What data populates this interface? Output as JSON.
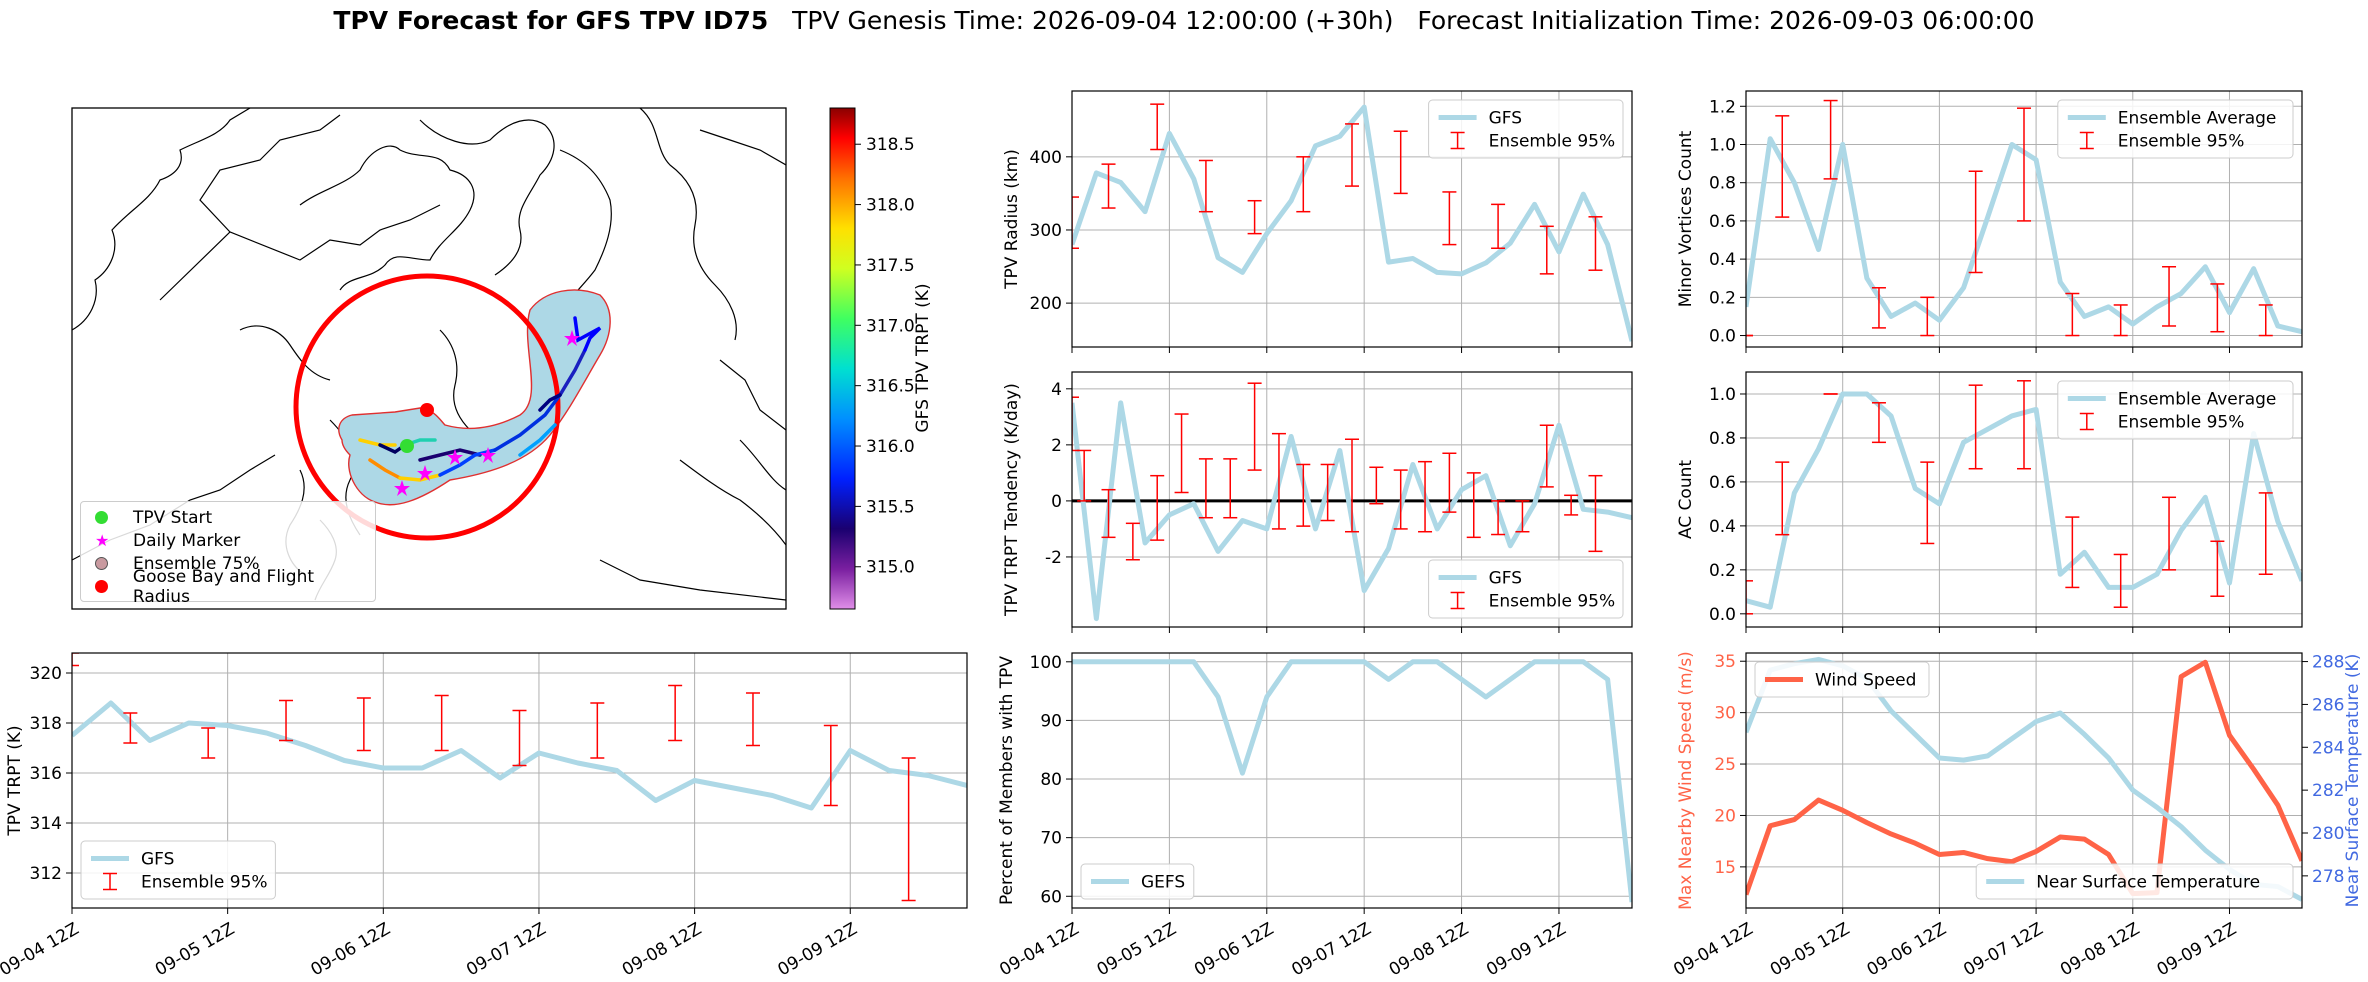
{
  "title": {
    "bold": "TPV Forecast for GFS TPV ID75",
    "genesis": "TPV Genesis Time: 2026-09-04 12:00:00 (+30h)",
    "init": "Forecast Initialization Time: 2026-09-03 06:00:00"
  },
  "colors": {
    "gfs_line": "#add8e6",
    "ensemble_bar": "#ff0000",
    "wind_line": "#ff6347",
    "temp_axis": "#4169e1",
    "ensemble_fill": "#add8e6",
    "flight_radius": "#ff0000"
  },
  "map": {
    "colorbar_label": "GFS TPV TRPT (K)",
    "colorbar_ticks": [
      "315.0",
      "315.5",
      "316.0",
      "316.5",
      "317.0",
      "317.5",
      "318.0",
      "318.5"
    ],
    "colorbar_range": [
      314.65,
      318.8
    ],
    "legend": [
      {
        "label": "TPV Start",
        "marker": "green-dot-icon"
      },
      {
        "label": "Daily Marker",
        "marker": "magenta-star-icon"
      },
      {
        "label": "Ensemble 75%",
        "marker": "blue-circle-icon"
      },
      {
        "label": "Goose Bay and Flight Radius",
        "marker": "red-dot-icon"
      }
    ]
  },
  "x_tick_labels": [
    "09-04 12Z",
    "09-05 12Z",
    "09-06 12Z",
    "09-07 12Z",
    "09-08 12Z",
    "09-09 12Z"
  ],
  "chart_data": [
    {
      "id": "radius",
      "type": "line",
      "ylabel": "TPV Radius (km)",
      "ylim": [
        140,
        490
      ],
      "yticks": [
        200,
        300,
        400
      ],
      "grid": true,
      "legend_position": "top-right",
      "x_hours": [
        0,
        6,
        12,
        18,
        24,
        30,
        36,
        42,
        48,
        54,
        60,
        66,
        72,
        78,
        84,
        90,
        96,
        102,
        108,
        114,
        120,
        126,
        132,
        138
      ],
      "series": [
        {
          "name": "GFS",
          "values": [
            280,
            378,
            365,
            325,
            432,
            370,
            262,
            242,
            295,
            340,
            415,
            428,
            468,
            256,
            261,
            242,
            240,
            255,
            282,
            335,
            270,
            349,
            280,
            148
          ]
        }
      ],
      "ensemble": {
        "name": "Ensemble 95%",
        "x_hours": [
          0,
          9,
          21,
          33,
          45,
          57,
          69,
          81,
          93,
          105,
          117,
          129
        ],
        "low": [
          275,
          330,
          410,
          325,
          295,
          325,
          360,
          350,
          280,
          275,
          240,
          245
        ],
        "high": [
          345,
          390,
          472,
          395,
          340,
          400,
          445,
          435,
          352,
          335,
          305,
          318
        ]
      }
    },
    {
      "id": "tendency",
      "type": "line",
      "ylabel": "TPV TRPT Tendency (K/day)",
      "ylim": [
        -4.5,
        4.6
      ],
      "yticks": [
        -2,
        0,
        2,
        4
      ],
      "grid": true,
      "zero_line": true,
      "legend_position": "bottom-right",
      "x_hours": [
        0,
        6,
        12,
        18,
        24,
        30,
        36,
        42,
        48,
        54,
        60,
        66,
        72,
        78,
        84,
        90,
        96,
        102,
        108,
        114,
        120,
        126,
        132,
        138
      ],
      "series": [
        {
          "name": "GFS",
          "values": [
            3.5,
            -4.2,
            3.5,
            -1.5,
            -0.5,
            -0.1,
            -1.8,
            -0.7,
            -1.0,
            2.3,
            -1.0,
            1.8,
            -3.2,
            -1.7,
            1.3,
            -1.0,
            0.4,
            0.9,
            -1.6,
            -0.1,
            2.7,
            -0.3,
            -0.4,
            -0.6
          ]
        }
      ],
      "ensemble": {
        "name": "Ensemble 95%",
        "x_hours": [
          0,
          3,
          9,
          15,
          21,
          27,
          33,
          39,
          45,
          51,
          57,
          63,
          69,
          75,
          81,
          87,
          93,
          99,
          105,
          111,
          117,
          123,
          129
        ],
        "low": [
          1.8,
          0.0,
          -1.3,
          -2.1,
          -1.4,
          0.3,
          -0.6,
          -0.6,
          1.1,
          -1.0,
          -0.9,
          -0.7,
          -1.1,
          -0.1,
          -1.0,
          -1.1,
          -0.4,
          -1.3,
          -1.2,
          -1.1,
          0.5,
          -0.5,
          -1.8
        ],
        "high": [
          3.7,
          1.8,
          0.4,
          -0.8,
          0.9,
          3.1,
          1.5,
          1.5,
          4.2,
          2.4,
          1.3,
          1.3,
          2.2,
          1.2,
          1.1,
          1.4,
          1.7,
          1.0,
          0.0,
          0.0,
          2.7,
          0.2,
          0.9
        ]
      }
    },
    {
      "id": "trpt",
      "type": "line",
      "ylabel": "TPV TRPT (K)",
      "ylim": [
        310.6,
        320.8
      ],
      "yticks": [
        312,
        314,
        316,
        318,
        320
      ],
      "grid": true,
      "legend_position": "bottom-left",
      "x_hours": [
        0,
        6,
        12,
        18,
        24,
        30,
        36,
        42,
        48,
        54,
        60,
        66,
        72,
        78,
        84,
        90,
        96,
        102,
        108,
        114,
        120,
        126,
        132,
        138
      ],
      "series": [
        {
          "name": "GFS",
          "values": [
            317.5,
            318.8,
            317.3,
            318.0,
            317.9,
            317.6,
            317.1,
            316.5,
            316.2,
            316.2,
            316.9,
            315.8,
            316.8,
            316.4,
            316.1,
            314.9,
            315.7,
            315.4,
            315.1,
            314.6,
            316.9,
            316.1,
            315.9,
            315.5
          ]
        }
      ],
      "ensemble": {
        "name": "Ensemble 95%",
        "x_hours": [
          0,
          9,
          21,
          33,
          45,
          57,
          69,
          81,
          93,
          105,
          117,
          129
        ],
        "low": [
          320.3,
          317.2,
          316.6,
          317.3,
          316.9,
          316.9,
          316.3,
          316.6,
          317.3,
          317.1,
          314.7,
          310.9
        ],
        "high": [
          320.8,
          318.4,
          317.8,
          318.9,
          319.0,
          319.1,
          318.5,
          318.8,
          319.5,
          319.2,
          317.9,
          316.6
        ]
      }
    },
    {
      "id": "members",
      "type": "line",
      "ylabel": "Percent of Members with TPV",
      "ylim": [
        58,
        101.5
      ],
      "yticks": [
        60,
        70,
        80,
        90,
        100
      ],
      "grid": true,
      "legend_position": "bottom-left",
      "x_hours": [
        0,
        6,
        12,
        18,
        24,
        30,
        36,
        42,
        48,
        54,
        60,
        66,
        72,
        78,
        84,
        90,
        96,
        102,
        108,
        114,
        120,
        126,
        132,
        138
      ],
      "series": [
        {
          "name": "GEFS",
          "values": [
            100,
            100,
            100,
            100,
            100,
            100,
            94,
            81,
            94,
            100,
            100,
            100,
            100,
            97,
            100,
            100,
            97,
            94,
            97,
            100,
            100,
            100,
            97,
            59
          ]
        }
      ]
    },
    {
      "id": "minor",
      "type": "line",
      "ylabel": "Minor Vortices Count",
      "ylim": [
        -0.06,
        1.28
      ],
      "yticks": [
        0.0,
        0.2,
        0.4,
        0.6,
        0.8,
        1.0,
        1.2
      ],
      "grid": true,
      "legend_position": "top-right",
      "x_hours": [
        0,
        6,
        12,
        18,
        24,
        30,
        36,
        42,
        48,
        54,
        60,
        66,
        72,
        78,
        84,
        90,
        96,
        102,
        108,
        114,
        120,
        126,
        132,
        138
      ],
      "series": [
        {
          "name": "Ensemble Average",
          "values": [
            0.15,
            1.03,
            0.8,
            0.45,
            1.0,
            0.3,
            0.1,
            0.17,
            0.08,
            0.25,
            0.62,
            1.0,
            0.92,
            0.28,
            0.1,
            0.15,
            0.06,
            0.15,
            0.22,
            0.36,
            0.12,
            0.35,
            0.05,
            0.02
          ]
        }
      ],
      "ensemble": {
        "name": "Ensemble 95%",
        "x_hours": [
          0,
          9,
          21,
          33,
          45,
          57,
          69,
          81,
          93,
          105,
          117,
          129
        ],
        "low": [
          0.0,
          0.62,
          0.82,
          0.04,
          0.0,
          0.33,
          0.6,
          0.0,
          0.0,
          0.05,
          0.02,
          0.0
        ],
        "high": [
          0.0,
          1.15,
          1.23,
          0.25,
          0.2,
          0.86,
          1.19,
          0.22,
          0.16,
          0.36,
          0.27,
          0.16
        ]
      }
    },
    {
      "id": "ac",
      "type": "line",
      "ylabel": "AC Count",
      "ylim": [
        -0.06,
        1.1
      ],
      "yticks": [
        0.0,
        0.2,
        0.4,
        0.6,
        0.8,
        1.0
      ],
      "grid": true,
      "legend_position": "top-right",
      "x_hours": [
        0,
        6,
        12,
        18,
        24,
        30,
        36,
        42,
        48,
        54,
        60,
        66,
        72,
        78,
        84,
        90,
        96,
        102,
        108,
        114,
        120,
        126,
        132,
        138
      ],
      "series": [
        {
          "name": "Ensemble Average",
          "values": [
            0.06,
            0.03,
            0.55,
            0.75,
            1.0,
            1.0,
            0.9,
            0.57,
            0.5,
            0.78,
            0.84,
            0.9,
            0.93,
            0.18,
            0.28,
            0.12,
            0.12,
            0.18,
            0.38,
            0.53,
            0.14,
            0.82,
            0.42,
            0.15
          ]
        }
      ],
      "ensemble": {
        "name": "Ensemble 95%",
        "x_hours": [
          0,
          9,
          21,
          33,
          45,
          57,
          69,
          81,
          93,
          105,
          117,
          129
        ],
        "low": [
          0.0,
          0.36,
          1.0,
          0.78,
          0.32,
          0.66,
          0.66,
          0.12,
          0.03,
          0.2,
          0.08,
          0.18
        ],
        "high": [
          0.15,
          0.69,
          1.0,
          0.96,
          0.69,
          1.04,
          1.06,
          0.44,
          0.27,
          0.53,
          0.33,
          0.55
        ]
      }
    },
    {
      "id": "wind_temp",
      "type": "line",
      "ylabel": "Max Nearby Wind Speed (m/s)",
      "ylabel_right": "Near Surface Temperature (K)",
      "ylim": [
        11,
        35.8
      ],
      "yticks": [
        15,
        20,
        25,
        30,
        35
      ],
      "ylim_right": [
        276.5,
        288.4
      ],
      "yticks_right": [
        278,
        280,
        282,
        284,
        286,
        288
      ],
      "grid": true,
      "x_hours": [
        0,
        6,
        12,
        18,
        24,
        30,
        36,
        42,
        48,
        54,
        60,
        66,
        72,
        78,
        84,
        90,
        96,
        102,
        108,
        114,
        120,
        126,
        132,
        138
      ],
      "series": [
        {
          "name": "Wind Speed",
          "axis": "left",
          "legend_position": "top-left",
          "values": [
            12.3,
            19.0,
            19.6,
            21.5,
            20.5,
            19.3,
            18.2,
            17.3,
            16.2,
            16.4,
            15.8,
            15.5,
            16.5,
            17.9,
            17.7,
            16.2,
            12.4,
            12.5,
            33.5,
            34.9,
            27.8,
            24.5,
            21.0,
            15.6
          ]
        },
        {
          "name": "Near Surface Temperature",
          "axis": "right",
          "legend_position": "bottom-right",
          "values": [
            284.7,
            287.6,
            287.9,
            288.1,
            287.8,
            287.2,
            285.7,
            284.6,
            283.5,
            283.4,
            283.6,
            284.4,
            285.2,
            285.6,
            284.6,
            283.5,
            282.0,
            281.2,
            280.3,
            279.2,
            278.3,
            277.6,
            277.5,
            276.9
          ]
        }
      ]
    }
  ]
}
